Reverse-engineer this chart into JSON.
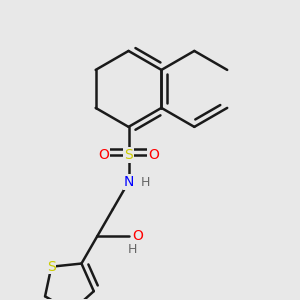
{
  "bg_color": "#e8e8e8",
  "line_color": "#1a1a1a",
  "S_color": "#cccc00",
  "O_color": "#ff0000",
  "N_color": "#0000ff",
  "H_color": "#666666",
  "line_width": 1.8,
  "dbo": 0.018,
  "figsize": [
    3.0,
    3.0
  ],
  "dpi": 100,
  "xlim": [
    0.05,
    0.95
  ],
  "ylim": [
    0.05,
    0.95
  ]
}
